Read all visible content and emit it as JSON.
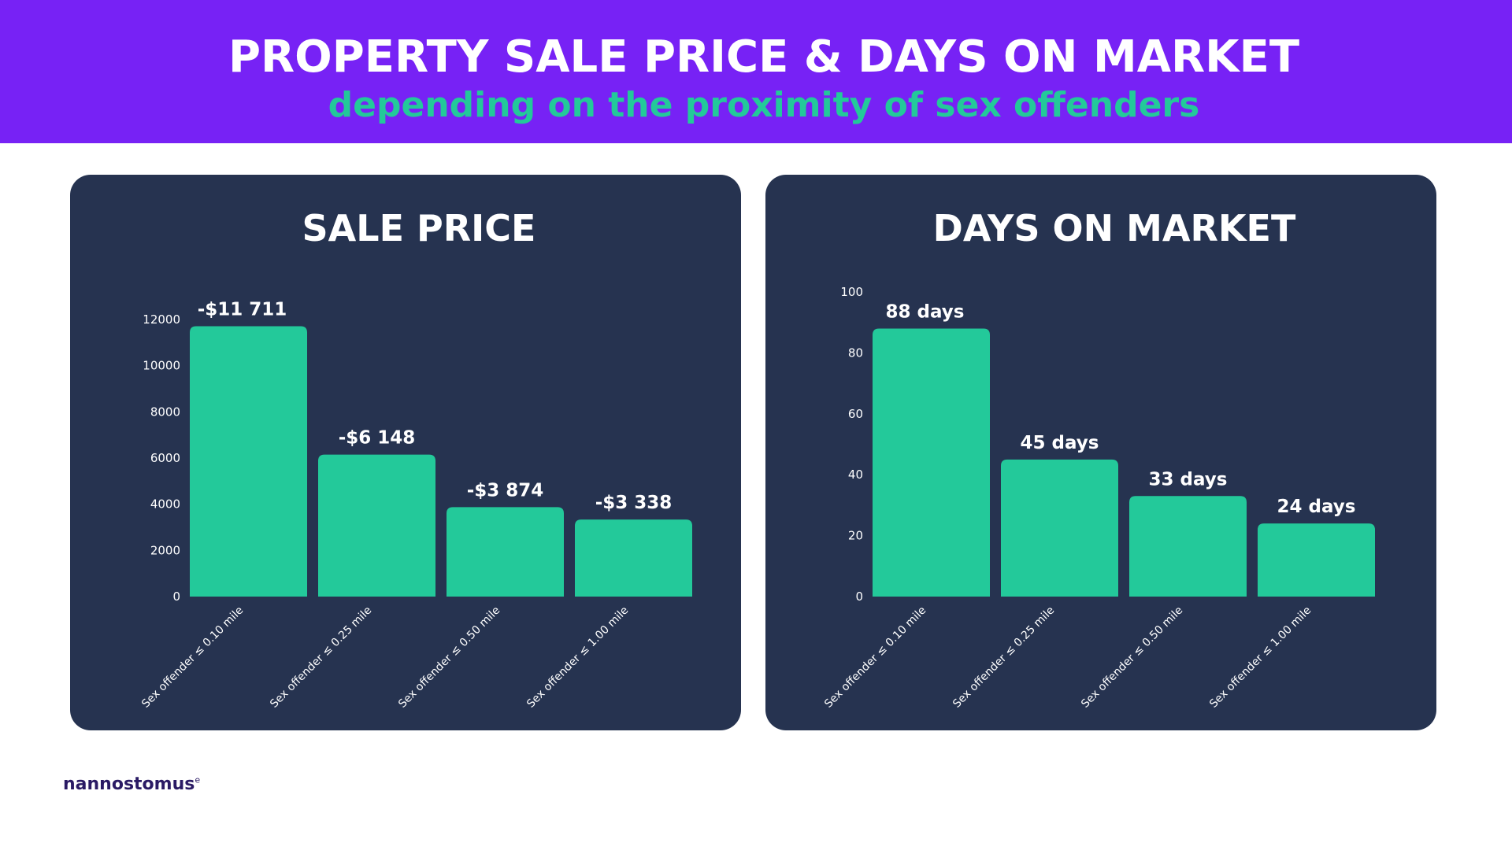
{
  "header": {
    "title": "PROPERTY SALE PRICE & DAYS ON MARKET",
    "subtitle": "depending on the proximity of sex offenders"
  },
  "brand": {
    "name": "nannostomus",
    "mark": "e"
  },
  "colors": {
    "banner": "#7722f5",
    "accent": "#23c99a",
    "panel": "#263350",
    "text": "#ffffff"
  },
  "chart_data": [
    {
      "type": "bar",
      "title": "SALE PRICE",
      "categories": [
        "Sex offender ≤ 0.10 mile",
        "Sex offender ≤ 0.25 mile",
        "Sex offender ≤ 0.50 mile",
        "Sex offender ≤ 1.00 mile"
      ],
      "values": [
        11711,
        6148,
        3874,
        3338
      ],
      "data_labels": [
        "-$11 711",
        "-$6 148",
        "-$3 874",
        "-$3 338"
      ],
      "yticks": [
        0,
        2000,
        4000,
        6000,
        8000,
        10000,
        12000
      ],
      "ylim": [
        0,
        12000
      ],
      "xlabel": "",
      "ylabel": "",
      "grid": false,
      "legend": "none"
    },
    {
      "type": "bar",
      "title": "DAYS ON MARKET",
      "categories": [
        "Sex offender ≤ 0.10 mile",
        "Sex offender ≤ 0.25 mile",
        "Sex offender ≤ 0.50 mile",
        "Sex offender ≤ 1.00 mile"
      ],
      "values": [
        88,
        45,
        33,
        24
      ],
      "data_labels": [
        "88 days",
        "45 days",
        "33 days",
        "24 days"
      ],
      "yticks": [
        0,
        20,
        40,
        60,
        80,
        100
      ],
      "ylim": [
        0,
        100
      ],
      "xlabel": "",
      "ylabel": "",
      "grid": false,
      "legend": "none"
    }
  ]
}
